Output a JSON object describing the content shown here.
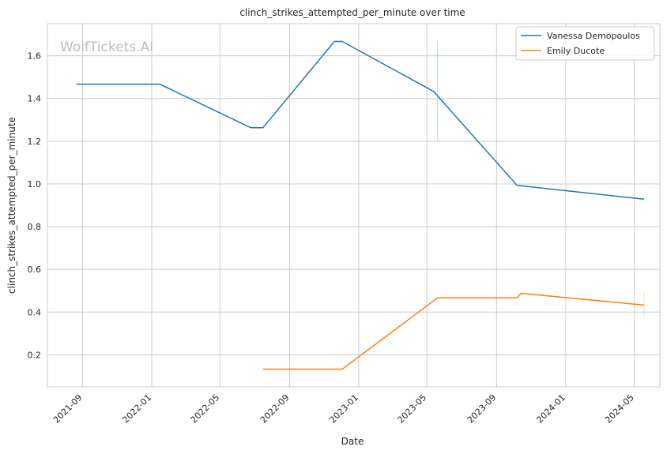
{
  "watermark": "WolfTickets.AI",
  "chart_data": {
    "type": "line",
    "title": "clinch_strikes_attempted_per_minute over time",
    "xlabel": "Date",
    "ylabel": "clinch_strikes_attempted_per_minute",
    "x_type": "date",
    "xlim": [
      "2021-07-01",
      "2024-06-15"
    ],
    "ylim": [
      0.05,
      1.75
    ],
    "yticks": [
      0.2,
      0.4,
      0.6,
      0.8,
      1.0,
      1.2,
      1.4,
      1.6
    ],
    "ytick_labels": [
      "0.2",
      "0.4",
      "0.6",
      "0.8",
      "1.0",
      "1.2",
      "1.4",
      "1.6"
    ],
    "xticks": [
      "2021-09-01",
      "2022-01-01",
      "2022-05-01",
      "2022-09-01",
      "2023-01-01",
      "2023-05-01",
      "2023-09-01",
      "2024-01-01",
      "2024-05-01"
    ],
    "xtick_labels": [
      "2021-09",
      "2022-01",
      "2022-05",
      "2022-09",
      "2023-01",
      "2023-05",
      "2023-09",
      "2024-01",
      "2024-05"
    ],
    "grid": true,
    "legend_position": "upper right",
    "series": [
      {
        "name": "Vanessa Demopoulos",
        "color": "#1f77b4",
        "x": [
          "2021-08-21",
          "2022-01-15",
          "2022-06-25",
          "2022-07-16",
          "2022-11-19",
          "2022-12-03",
          "2023-05-13",
          "2023-10-07",
          "2024-05-18"
        ],
        "y": [
          1.467,
          1.467,
          1.263,
          1.263,
          1.667,
          1.667,
          1.433,
          0.993,
          0.929
        ]
      },
      {
        "name": "Emily Ducote",
        "color": "#ff7f0e",
        "x": [
          "2022-07-16",
          "2022-12-03",
          "2023-05-20",
          "2023-10-07",
          "2023-10-14",
          "2024-05-18"
        ],
        "y": [
          0.133,
          0.133,
          0.467,
          0.467,
          0.488,
          0.433
        ]
      }
    ],
    "error_bars": [
      {
        "series": "Vanessa Demopoulos",
        "x": "2023-05-20",
        "y_low": 1.2,
        "y_high": 1.667
      },
      {
        "series": "Emily Ducote",
        "x": "2024-05-18",
        "y_low": 0.38,
        "y_high": 0.49
      }
    ]
  }
}
